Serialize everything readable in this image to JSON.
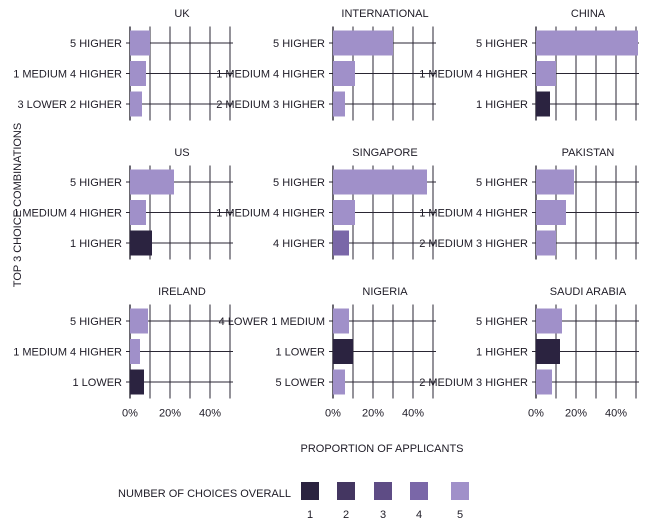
{
  "colors": {
    "grid": "#2a2633",
    "choices": {
      "1": "#2b2340",
      "2": "#443661",
      "3": "#5e4c85",
      "4": "#7a67a8",
      "5": "#a090c9"
    }
  },
  "chart_data": {
    "type": "bar",
    "orientation": "horizontal",
    "ylabel": "TOP 3 CHOICE COMBINATIONS",
    "xlabel": "PROPORTION OF APPLICANTS",
    "xlim": [
      0,
      0.5
    ],
    "xticks": [
      0,
      0.2,
      0.4
    ],
    "xtick_labels": [
      "0%",
      "20%",
      "40%"
    ],
    "grid": true,
    "legend": {
      "title": "NUMBER OF CHOICES OVERALL",
      "entries": [
        "1",
        "2",
        "3",
        "4",
        "5"
      ],
      "position": "bottom"
    },
    "panels": [
      {
        "title": "UK",
        "bars": [
          {
            "label": "5 HIGHER",
            "value": 0.1,
            "choices": 5
          },
          {
            "label": "1 MEDIUM 4 HIGHER",
            "value": 0.08,
            "choices": 5
          },
          {
            "label": "3 LOWER 2 HIGHER",
            "value": 0.06,
            "choices": 5
          }
        ]
      },
      {
        "title": "INTERNATIONAL",
        "bars": [
          {
            "label": "5 HIGHER",
            "value": 0.3,
            "choices": 5
          },
          {
            "label": "1 MEDIUM 4 HIGHER",
            "value": 0.11,
            "choices": 5
          },
          {
            "label": "2 MEDIUM 3 HIGHER",
            "value": 0.06,
            "choices": 5
          }
        ]
      },
      {
        "title": "CHINA",
        "bars": [
          {
            "label": "5 HIGHER",
            "value": 0.51,
            "choices": 5
          },
          {
            "label": "1 MEDIUM 4 HIGHER",
            "value": 0.1,
            "choices": 5
          },
          {
            "label": "1 HIGHER",
            "value": 0.07,
            "choices": 1
          }
        ]
      },
      {
        "title": "US",
        "bars": [
          {
            "label": "5 HIGHER",
            "value": 0.22,
            "choices": 5
          },
          {
            "label": "1 MEDIUM 4 HIGHER",
            "value": 0.08,
            "choices": 5
          },
          {
            "label": "1 HIGHER",
            "value": 0.11,
            "choices": 1
          }
        ]
      },
      {
        "title": "SINGAPORE",
        "bars": [
          {
            "label": "5 HIGHER",
            "value": 0.47,
            "choices": 5
          },
          {
            "label": "1 MEDIUM 4 HIGHER",
            "value": 0.11,
            "choices": 5
          },
          {
            "label": "4 HIGHER",
            "value": 0.08,
            "choices": 4
          }
        ]
      },
      {
        "title": "PAKISTAN",
        "bars": [
          {
            "label": "5 HIGHER",
            "value": 0.19,
            "choices": 5
          },
          {
            "label": "1 MEDIUM 4 HIGHER",
            "value": 0.15,
            "choices": 5
          },
          {
            "label": "2 MEDIUM 3 HIGHER",
            "value": 0.1,
            "choices": 5
          }
        ]
      },
      {
        "title": "IRELAND",
        "bars": [
          {
            "label": "5 HIGHER",
            "value": 0.09,
            "choices": 5
          },
          {
            "label": "1 MEDIUM 4 HIGHER",
            "value": 0.05,
            "choices": 5
          },
          {
            "label": "1 LOWER",
            "value": 0.07,
            "choices": 1
          }
        ]
      },
      {
        "title": "NIGERIA",
        "bars": [
          {
            "label": "4 LOWER 1 MEDIUM",
            "value": 0.08,
            "choices": 5
          },
          {
            "label": "1 LOWER",
            "value": 0.1,
            "choices": 1
          },
          {
            "label": "5 LOWER",
            "value": 0.06,
            "choices": 5
          }
        ]
      },
      {
        "title": "SAUDI ARABIA",
        "bars": [
          {
            "label": "5 HIGHER",
            "value": 0.13,
            "choices": 5
          },
          {
            "label": "1 HIGHER",
            "value": 0.12,
            "choices": 1
          },
          {
            "label": "2 MEDIUM 3 HIGHER",
            "value": 0.08,
            "choices": 5
          }
        ]
      }
    ]
  }
}
